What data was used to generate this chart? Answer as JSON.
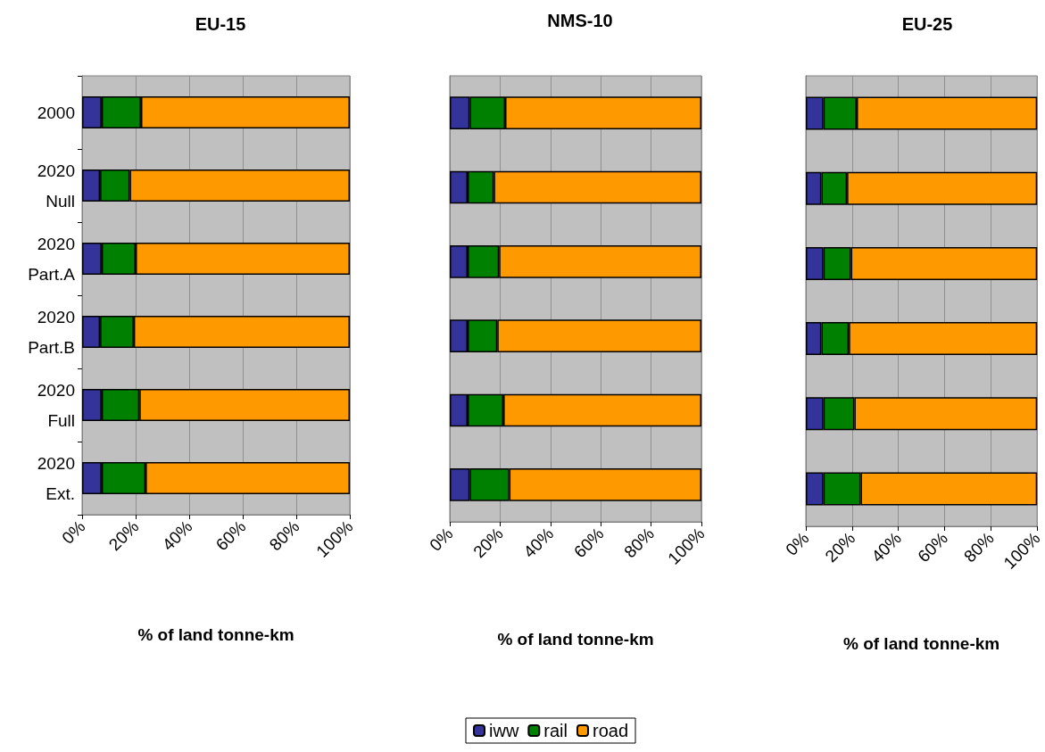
{
  "chart_data": [
    {
      "type": "bar",
      "title": "EU-15",
      "xlabel": "% of land tonne-km",
      "orientation": "horizontal",
      "stacked": true,
      "grid": "x",
      "legend": "bottom",
      "categories": [
        "2000",
        "2020\nNull",
        "2020\nPart.A",
        "2020\nPart.B",
        "2020\nFull",
        "2020\nExt."
      ],
      "xlim": [
        0,
        100
      ],
      "xticks": [
        {
          "value": 0,
          "label": "0%"
        },
        {
          "value": 20,
          "label": "20%"
        },
        {
          "value": 40,
          "label": "40%"
        },
        {
          "value": 60,
          "label": "60%"
        },
        {
          "value": 80,
          "label": "80%"
        },
        {
          "value": 100,
          "label": "100%"
        }
      ],
      "series": [
        {
          "name": "iww",
          "color": "#333399",
          "values": [
            7.3,
            6.7,
            7.3,
            6.7,
            7.3,
            7.3
          ]
        },
        {
          "name": "rail",
          "color": "#008000",
          "values": [
            14.7,
            11.1,
            12.7,
            12.6,
            14.1,
            16.4
          ]
        },
        {
          "name": "road",
          "color": "#ff9900",
          "values": [
            78,
            82.2,
            80,
            80.7,
            78.6,
            76.3
          ]
        }
      ]
    },
    {
      "type": "bar",
      "title": "NMS-10",
      "xlabel": "% of land tonne-km",
      "orientation": "horizontal",
      "stacked": true,
      "grid": "x",
      "tick_labels": "x",
      "categories": [
        null,
        null,
        null,
        null,
        null,
        null
      ],
      "xlim": [
        0,
        100
      ],
      "xticks": [
        {
          "value": 0,
          "label": "0%"
        },
        {
          "value": 20,
          "label": "20%"
        },
        {
          "value": 40,
          "label": "40%"
        },
        {
          "value": 60,
          "label": "60%"
        },
        {
          "value": 80,
          "label": "80%"
        },
        {
          "value": 100,
          "label": "100%"
        }
      ],
      "series": [
        {
          "color": "#333399",
          "values": [
            7.9,
            7.1,
            7.1,
            7.1,
            7.1,
            7.9
          ]
        },
        {
          "color": "#008000",
          "values": [
            14.1,
            10.4,
            12.5,
            11.8,
            14.2,
            15.7
          ]
        },
        {
          "color": "#ff9900",
          "values": [
            78,
            82.5,
            80.4,
            81.1,
            78.7,
            76.4
          ]
        }
      ]
    },
    {
      "type": "bar",
      "title": "EU-25",
      "xlabel": "% of land tonne-km",
      "orientation": "horizontal",
      "stacked": true,
      "grid": "x",
      "tick_labels": "x",
      "categories": [
        null,
        null,
        null,
        null,
        null,
        null
      ],
      "xlim": [
        0,
        100
      ],
      "xticks": [
        {
          "value": 0,
          "label": "0%"
        },
        {
          "value": 20,
          "label": "20%"
        },
        {
          "value": 40,
          "label": "40%"
        },
        {
          "value": 60,
          "label": "60%"
        },
        {
          "value": 80,
          "label": "80%"
        },
        {
          "value": 100,
          "label": "100%"
        }
      ],
      "series": [
        {
          "color": "#333399",
          "values": [
            7.6,
            6.7,
            7.6,
            6.7,
            7.6,
            7.6
          ]
        },
        {
          "color": "#008000",
          "values": [
            14.4,
            11.1,
            11.9,
            11.9,
            13.4,
            16.1
          ]
        },
        {
          "color": "#ff9900",
          "values": [
            78,
            82.2,
            80.5,
            81.4,
            79,
            76.3
          ]
        }
      ]
    }
  ]
}
